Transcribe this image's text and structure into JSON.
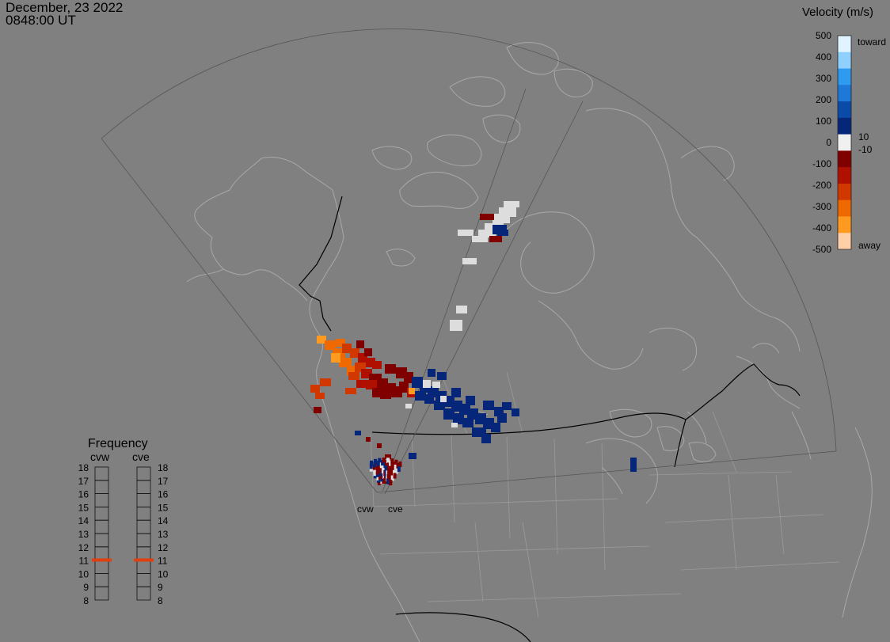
{
  "header": {
    "date": "December, 23 2022",
    "time": "0848:00 UT"
  },
  "radars": [
    {
      "code": "cvw"
    },
    {
      "code": "cve"
    }
  ],
  "velocity_scale": {
    "title": "Velocity (m/s)",
    "tick_labels": [
      "500",
      "400",
      "300",
      "200",
      "100",
      "0",
      "-100",
      "-200",
      "-300",
      "-400",
      "-500"
    ],
    "inner_labels": [
      "10",
      "-10"
    ],
    "toward_label": "toward",
    "away_label": "away",
    "colors": [
      "#E0F4FF",
      "#8FD0FF",
      "#2E9BF0",
      "#1E78D8",
      "#0A4BA8",
      "#06267A",
      "#F0F0F0",
      "#800000",
      "#B01000",
      "#D03800",
      "#EE6A00",
      "#FF9A20",
      "#FFD0A8"
    ],
    "ground_scatter_color": "#DDDDDD"
  },
  "frequency_panel": {
    "title": "Frequency",
    "radars": [
      "cvw",
      "cve"
    ],
    "levels": [
      "18",
      "17",
      "16",
      "15",
      "14",
      "13",
      "12",
      "11",
      "10",
      "9",
      "8"
    ],
    "cvw_frequency_mhz": 10.8,
    "cve_frequency_mhz": 10.8,
    "marker_color": "#E04010"
  }
}
